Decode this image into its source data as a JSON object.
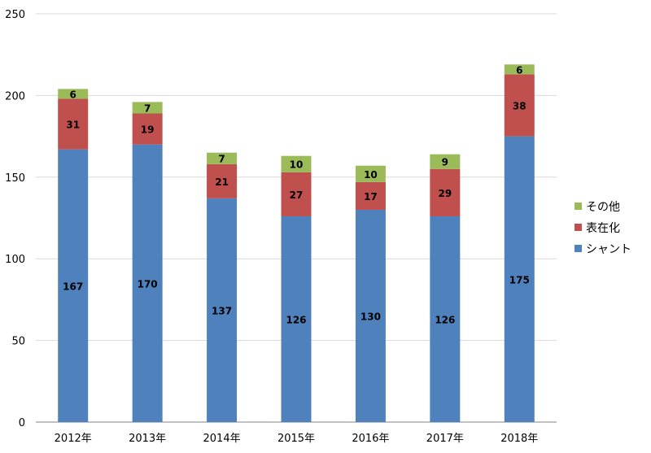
{
  "chart_data": {
    "type": "bar",
    "stacked": true,
    "categories": [
      "2012年",
      "2013年",
      "2014年",
      "2015年",
      "2016年",
      "2017年",
      "2018年"
    ],
    "series": [
      {
        "name": "シャント",
        "color": "#4f81bd",
        "values": [
          167,
          170,
          137,
          126,
          130,
          126,
          175
        ]
      },
      {
        "name": "表在化",
        "color": "#c0504d",
        "values": [
          31,
          19,
          21,
          27,
          17,
          29,
          38
        ]
      },
      {
        "name": "その他",
        "color": "#9bbb59",
        "values": [
          6,
          7,
          7,
          10,
          10,
          9,
          6
        ]
      }
    ],
    "ylim": [
      0,
      250
    ],
    "yticks": [
      0,
      50,
      100,
      150,
      200,
      250
    ],
    "grid": true,
    "legend_position": "right",
    "legend_order": [
      "その他",
      "表在化",
      "シャント"
    ],
    "title": "",
    "xlabel": "",
    "ylabel": ""
  }
}
